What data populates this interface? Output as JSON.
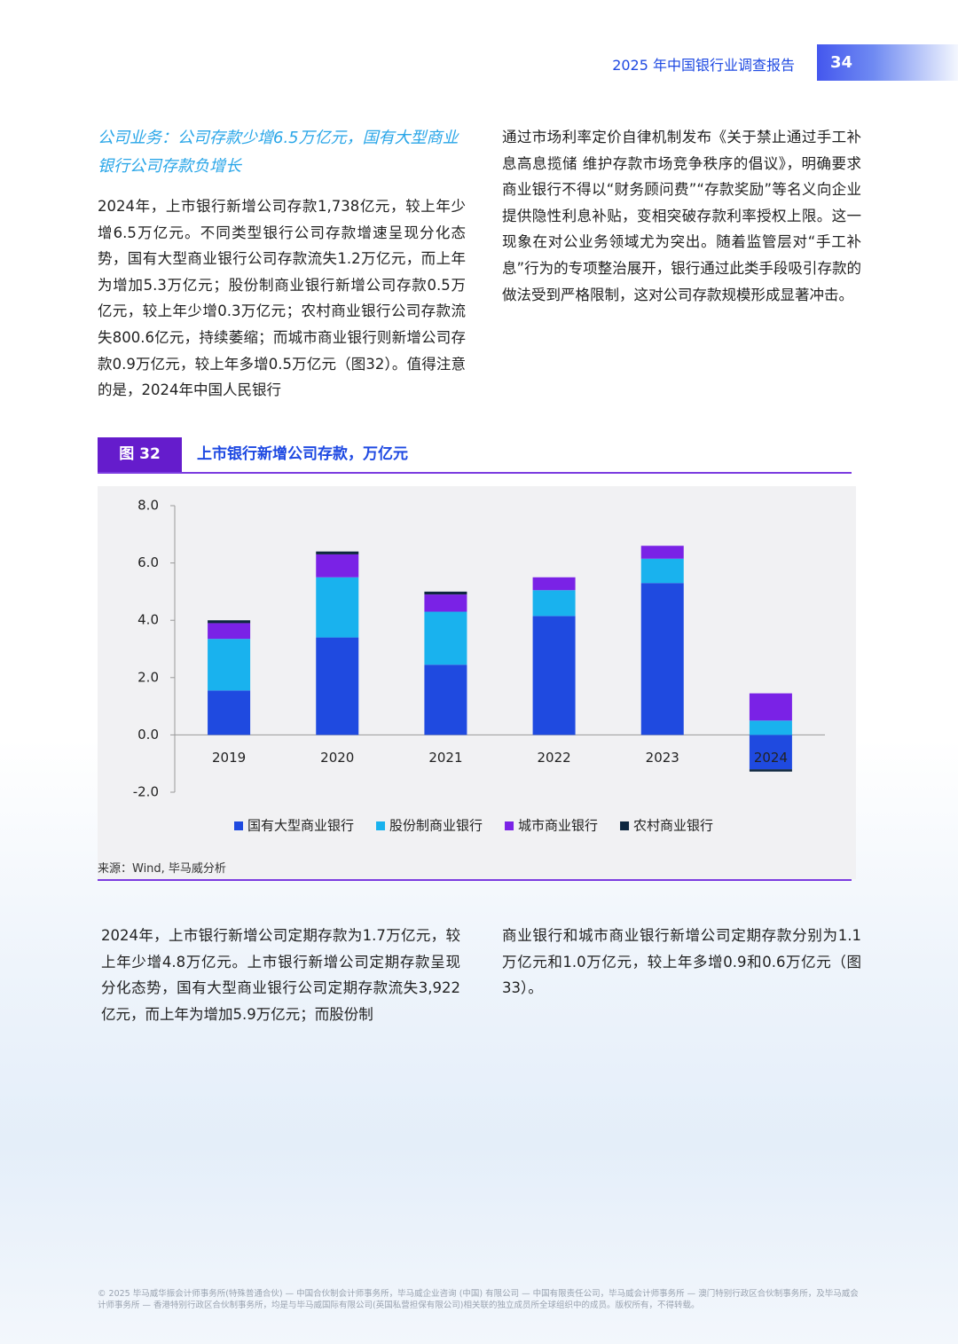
{
  "header": {
    "title": "2025 年中国银行业调查报告",
    "page": "34"
  },
  "section_heading": "公司业务：公司存款少增6.5万亿元，国有大型商业银行公司存款负增长",
  "paragraphs_top": [
    "2024年，上市银行新增公司存款1,738亿元，较上年少增6.5万亿元。不同类型银行公司存款增速呈现分化态势，国有大型商业银行公司存款流失1.2万亿元，而上年为增加5.3万亿元；股份制商业银行新增公司存款0.5万亿元，较上年少增0.3万亿元；农村商业银行公司存款流失800.6亿元，持续萎缩；而城市商业银行则新增公司存款0.9万亿元，较上年多增0.5万亿元（图32）。值得注意的是，2024年中国人民银行",
    "通过市场利率定价自律机制发布《关于禁止通过手工补息高息揽储 维护存款市场竞争秩序的倡议》，明确要求商业银行不得以“财务顾问费”“存款奖励”等名义向企业提供隐性利息补贴，变相突破存款利率授权上限。这一现象在对公业务领域尤为突出。随着监管层对“手工补息”行为的专项整治展开，银行通过此类手段吸引存款的做法受到严格限制，这对公司存款规模形成显著冲击。"
  ],
  "figure": {
    "label": "图 32"
  },
  "chart_data": {
    "type": "bar",
    "stacked": true,
    "title": "上市银行新增公司存款，万亿元",
    "categories": [
      "2019",
      "2020",
      "2021",
      "2022",
      "2023",
      "2024"
    ],
    "series": [
      {
        "name": "国有大型商业银行",
        "color": "#1f4ae0",
        "values": [
          1.55,
          3.4,
          2.45,
          4.15,
          5.3,
          -1.2
        ]
      },
      {
        "name": "股份制商业银行",
        "color": "#19b2ee",
        "values": [
          1.8,
          2.1,
          1.85,
          0.9,
          0.85,
          0.5
        ]
      },
      {
        "name": "城市商业银行",
        "color": "#7a22e6",
        "values": [
          0.55,
          0.8,
          0.6,
          0.45,
          0.45,
          0.95
        ]
      },
      {
        "name": "农村商业银行",
        "color": "#0e2740",
        "values": [
          0.1,
          0.1,
          0.1,
          0,
          0,
          -0.08
        ]
      }
    ],
    "ylim": [
      -2,
      8
    ],
    "yticks": [
      {
        "value": -2,
        "label": "-2.0"
      },
      {
        "value": 0,
        "label": "0.0"
      },
      {
        "value": 2,
        "label": "2.0"
      },
      {
        "value": 4,
        "label": "4.0"
      },
      {
        "value": 6,
        "label": "6.0"
      },
      {
        "value": 8,
        "label": "8.0"
      }
    ],
    "grid": false,
    "legend": "bottom",
    "source": "来源：Wind, 毕马威分析"
  },
  "paragraphs_bottom": [
    "2024年，上市银行新增公司定期存款为1.7万亿元，较上年少增4.8万亿元。上市银行新增公司定期存款呈现分化态势，国有大型商业银行公司定期存款流失3,922亿元，而上年为增加5.9万亿元；而股份制",
    "商业银行和城市商业银行新增公司定期存款分别为1.1万亿元和1.0万亿元，较上年多增0.9和0.6万亿元（图33）。"
  ],
  "footer": "© 2025 毕马威华振会计师事务所(特殊普通合伙) — 中国合伙制会计师事务所，毕马威企业咨询 (中国) 有限公司 — 中国有限责任公司，毕马威会计师事务所 — 澳门特别行政区合伙制事务所，及毕马威会计师事务所 — 香港特别行政区合伙制事务所，均是与毕马威国际有限公司(英国私营担保有限公司)相关联的独立成员所全球组织中的成员。版权所有，不得转载。"
}
